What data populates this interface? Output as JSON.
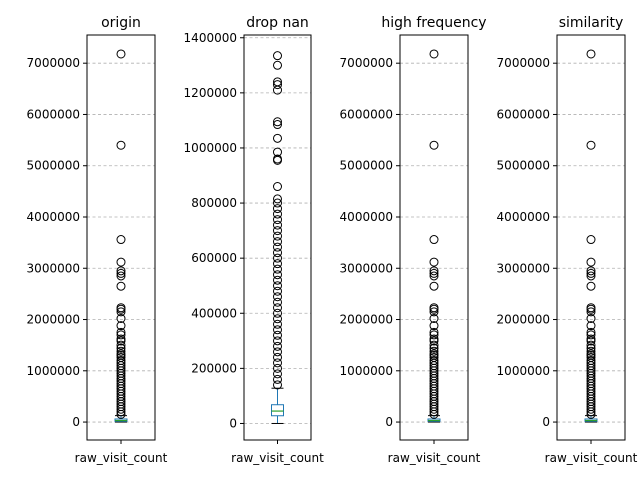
{
  "chart_data": [
    {
      "type": "box",
      "title": "origin",
      "category": "raw_visit_count",
      "ylim": [
        -350000,
        7550000
      ],
      "yticks": [
        0,
        1000000,
        2000000,
        3000000,
        4000000,
        5000000,
        6000000,
        7000000
      ],
      "ytick_labels": [
        "0",
        "1000000",
        "2000000",
        "3000000",
        "4000000",
        "5000000",
        "6000000",
        "7000000"
      ],
      "box": {
        "q1": 15000,
        "median": 30000,
        "q3": 60000,
        "whisker_low": 0,
        "whisker_high": 125000
      },
      "outliers": [
        7180000,
        5400000,
        3560000,
        3120000,
        2950000,
        2900000,
        2850000,
        2650000,
        2230000,
        2200000,
        2150000,
        2020000,
        1880000,
        1750000,
        1700000,
        1620000,
        1580000,
        1500000,
        1440000,
        1380000,
        1330000,
        1300000,
        1260000,
        1200000,
        1150000,
        1100000,
        1050000,
        1000000,
        950000,
        900000,
        850000,
        800000,
        750000,
        700000,
        650000,
        600000,
        550000,
        500000,
        450000,
        400000,
        350000,
        300000,
        250000,
        200000,
        150000
      ],
      "grid": true
    },
    {
      "type": "box",
      "title": "drop nan",
      "category": "raw_visit_count",
      "ylim": [
        -60000,
        1410000
      ],
      "yticks": [
        0,
        200000,
        400000,
        600000,
        800000,
        1000000,
        1200000,
        1400000
      ],
      "ytick_labels": [
        "0",
        "200000",
        "400000",
        "600000",
        "800000",
        "1000000",
        "1200000",
        "1400000"
      ],
      "box": {
        "q1": 28000,
        "median": 45000,
        "q3": 68000,
        "whisker_low": 0,
        "whisker_high": 128000
      },
      "outliers": [
        1335000,
        1300000,
        1240000,
        1230000,
        1210000,
        1095000,
        1085000,
        1035000,
        985000,
        960000,
        955000,
        860000,
        815000,
        800000,
        780000,
        760000,
        740000,
        720000,
        700000,
        680000,
        660000,
        640000,
        620000,
        600000,
        580000,
        560000,
        540000,
        520000,
        500000,
        480000,
        460000,
        440000,
        420000,
        400000,
        380000,
        360000,
        340000,
        320000,
        300000,
        280000,
        260000,
        240000,
        220000,
        200000,
        180000,
        160000,
        140000
      ],
      "grid": true
    },
    {
      "type": "box",
      "title": "high frequency",
      "category": "raw_visit_count",
      "ylim": [
        -350000,
        7550000
      ],
      "yticks": [
        0,
        1000000,
        2000000,
        3000000,
        4000000,
        5000000,
        6000000,
        7000000
      ],
      "ytick_labels": [
        "0",
        "1000000",
        "2000000",
        "3000000",
        "4000000",
        "5000000",
        "6000000",
        "7000000"
      ],
      "box": {
        "q1": 15000,
        "median": 30000,
        "q3": 60000,
        "whisker_low": 0,
        "whisker_high": 125000
      },
      "outliers": [
        7180000,
        5400000,
        3560000,
        3120000,
        2950000,
        2900000,
        2850000,
        2650000,
        2230000,
        2200000,
        2150000,
        2020000,
        1880000,
        1750000,
        1700000,
        1620000,
        1580000,
        1500000,
        1440000,
        1380000,
        1330000,
        1300000,
        1260000,
        1200000,
        1150000,
        1100000,
        1050000,
        1000000,
        950000,
        900000,
        850000,
        800000,
        750000,
        700000,
        650000,
        600000,
        550000,
        500000,
        450000,
        400000,
        350000,
        300000,
        250000,
        200000,
        150000
      ],
      "grid": true
    },
    {
      "type": "box",
      "title": "similarity",
      "category": "raw_visit_count",
      "ylim": [
        -350000,
        7550000
      ],
      "yticks": [
        0,
        1000000,
        2000000,
        3000000,
        4000000,
        5000000,
        6000000,
        7000000
      ],
      "ytick_labels": [
        "0",
        "1000000",
        "2000000",
        "3000000",
        "4000000",
        "5000000",
        "6000000",
        "7000000"
      ],
      "box": {
        "q1": 15000,
        "median": 30000,
        "q3": 60000,
        "whisker_low": 0,
        "whisker_high": 125000
      },
      "outliers": [
        7180000,
        5400000,
        3560000,
        3120000,
        2950000,
        2900000,
        2850000,
        2650000,
        2230000,
        2200000,
        2150000,
        2020000,
        1880000,
        1750000,
        1700000,
        1620000,
        1580000,
        1500000,
        1440000,
        1380000,
        1330000,
        1300000,
        1260000,
        1200000,
        1150000,
        1100000,
        1050000,
        1000000,
        950000,
        900000,
        850000,
        800000,
        750000,
        700000,
        650000,
        600000,
        550000,
        500000,
        450000,
        400000,
        350000,
        300000,
        250000,
        200000,
        150000
      ],
      "grid": true
    }
  ],
  "colors": {
    "box": "#1f77b4",
    "median": "#2ca02c",
    "grid": "#b0b0b0",
    "axis": "#000000",
    "flier": "#000000"
  }
}
